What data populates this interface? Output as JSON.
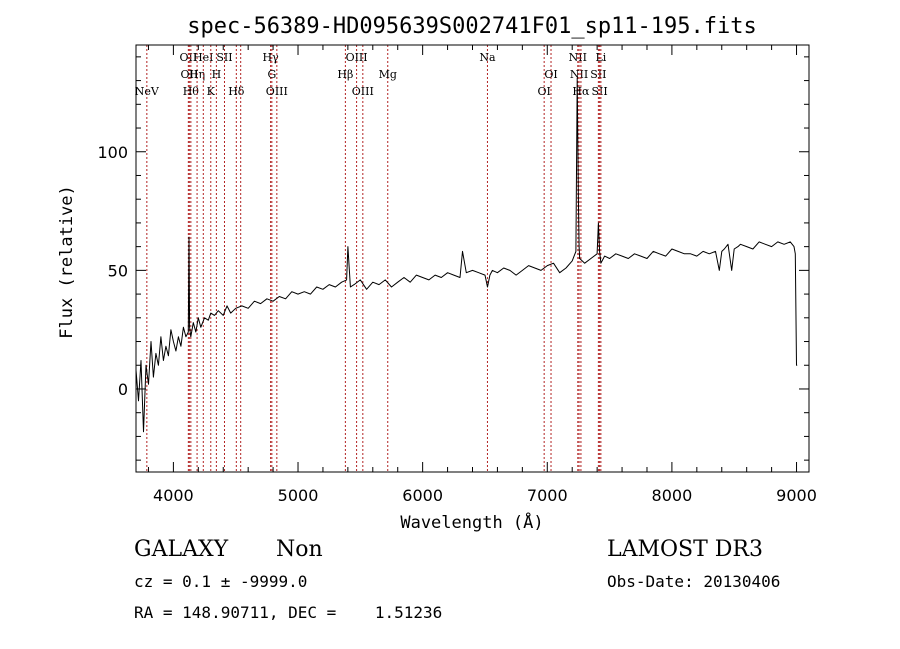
{
  "chart_data": {
    "type": "line",
    "title": "spec-56389-HD095639S002741F01_sp11-195.fits",
    "xlabel": "Wavelength (Å)",
    "ylabel": "Flux (relative)",
    "xlim": [
      3700,
      9100
    ],
    "ylim": [
      -35,
      145
    ],
    "xticks": [
      4000,
      5000,
      6000,
      7000,
      8000,
      9000
    ],
    "yticks": [
      0,
      50,
      100
    ],
    "series": [
      {
        "x": [
          3700,
          3720,
          3740,
          3760,
          3780,
          3800,
          3820,
          3840,
          3860,
          3880,
          3900,
          3920,
          3940,
          3960,
          3980,
          4000,
          4020,
          4040,
          4060,
          4080,
          4100,
          4120,
          4125,
          4130,
          4140,
          4160,
          4180,
          4200,
          4220,
          4250,
          4280,
          4300,
          4330,
          4360,
          4400,
          4430,
          4460,
          4500,
          4550,
          4600,
          4650,
          4700,
          4750,
          4800,
          4850,
          4900,
          4950,
          5000,
          5050,
          5100,
          5150,
          5200,
          5250,
          5300,
          5350,
          5390,
          5400,
          5420,
          5450,
          5500,
          5550,
          5600,
          5650,
          5700,
          5750,
          5800,
          5850,
          5900,
          5950,
          6000,
          6050,
          6100,
          6150,
          6200,
          6250,
          6300,
          6320,
          6350,
          6400,
          6450,
          6500,
          6520,
          6540,
          6560,
          6600,
          6650,
          6700,
          6750,
          6800,
          6850,
          6900,
          6950,
          7000,
          7050,
          7100,
          7150,
          7200,
          7230,
          7240,
          7245,
          7250,
          7255,
          7260,
          7280,
          7300,
          7350,
          7400,
          7410,
          7420,
          7430,
          7440,
          7460,
          7500,
          7550,
          7600,
          7650,
          7700,
          7750,
          7800,
          7850,
          7900,
          7950,
          8000,
          8050,
          8100,
          8150,
          8200,
          8250,
          8300,
          8350,
          8380,
          8400,
          8420,
          8450,
          8480,
          8500,
          8530,
          8550,
          8600,
          8650,
          8700,
          8750,
          8800,
          8850,
          8900,
          8950,
          8980,
          8990,
          9000,
          9005
        ],
        "y": [
          8,
          -5,
          12,
          -18,
          10,
          2,
          20,
          5,
          15,
          10,
          22,
          12,
          18,
          14,
          25,
          20,
          16,
          22,
          18,
          26,
          22,
          24,
          64,
          26,
          22,
          28,
          24,
          30,
          26,
          30,
          29,
          32,
          31,
          33,
          31,
          35,
          32,
          34,
          35,
          34,
          37,
          36,
          38,
          37,
          39,
          38,
          41,
          40,
          41,
          40,
          43,
          42,
          44,
          43,
          45,
          46,
          60,
          43,
          44,
          46,
          42,
          45,
          44,
          46,
          43,
          45,
          47,
          45,
          48,
          47,
          46,
          48,
          47,
          49,
          48,
          47,
          58,
          49,
          50,
          49,
          48,
          43,
          48,
          50,
          49,
          51,
          50,
          48,
          50,
          52,
          51,
          50,
          52,
          53,
          49,
          51,
          54,
          58,
          131,
          105,
          80,
          60,
          55,
          54,
          53,
          55,
          57,
          70,
          58,
          53,
          54,
          56,
          55,
          57,
          56,
          55,
          57,
          56,
          55,
          58,
          57,
          56,
          59,
          58,
          57,
          57,
          56,
          58,
          57,
          58,
          50,
          58,
          59,
          61,
          50,
          59,
          60,
          61,
          60,
          59,
          62,
          61,
          60,
          62,
          61,
          62,
          60,
          57,
          10,
          10
        ],
        "color": "#000000"
      }
    ],
    "line_color": "#b22222",
    "line_markers": [
      {
        "wl": 3787,
        "label": "NeV",
        "row": 3
      },
      {
        "wl": 4120,
        "label": "OII",
        "row": 1
      },
      {
        "wl": 4128,
        "label": "OII",
        "row": 2
      },
      {
        "wl": 4140,
        "label": "Hθ",
        "row": 3
      },
      {
        "wl": 4190,
        "label": "Hη",
        "row": 2
      },
      {
        "wl": 4240,
        "label": "HeI",
        "row": 1
      },
      {
        "wl": 4300,
        "label": "K",
        "row": 3
      },
      {
        "wl": 4345,
        "label": "H",
        "row": 2
      },
      {
        "wl": 4410,
        "label": "SII",
        "row": 1
      },
      {
        "wl": 4505,
        "label": "Hδ",
        "row": 3
      },
      {
        "wl": 4540,
        "label": "",
        "row": 0
      },
      {
        "wl": 4780,
        "label": "Hγ",
        "row": 1
      },
      {
        "wl": 4790,
        "label": "G",
        "row": 2
      },
      {
        "wl": 4830,
        "label": "OIII",
        "row": 3
      },
      {
        "wl": 5380,
        "label": "Hβ",
        "row": 2
      },
      {
        "wl": 5470,
        "label": "OIII",
        "row": 1
      },
      {
        "wl": 5520,
        "label": "OIII",
        "row": 3
      },
      {
        "wl": 5720,
        "label": "Mg",
        "row": 2
      },
      {
        "wl": 6520,
        "label": "Na",
        "row": 1
      },
      {
        "wl": 6975,
        "label": "OI",
        "row": 3
      },
      {
        "wl": 7030,
        "label": "OI",
        "row": 2
      },
      {
        "wl": 7245,
        "label": "NII",
        "row": 1
      },
      {
        "wl": 7255,
        "label": "NII",
        "row": 2
      },
      {
        "wl": 7270,
        "label": "Hα",
        "row": 3
      },
      {
        "wl": 7410,
        "label": "SII",
        "row": 2
      },
      {
        "wl": 7420,
        "label": "SII",
        "row": 3
      },
      {
        "wl": 7430,
        "label": "Li",
        "row": 1
      }
    ],
    "grid": false,
    "legend": "none"
  },
  "info": {
    "object_class": "GALAXY",
    "subclass": "Non",
    "survey": "LAMOST DR3",
    "redshift": "cz = 0.1 ± -9999.0",
    "obs_date": "Obs-Date: 20130406",
    "coords": "RA = 148.90711, DEC =    1.51236"
  }
}
